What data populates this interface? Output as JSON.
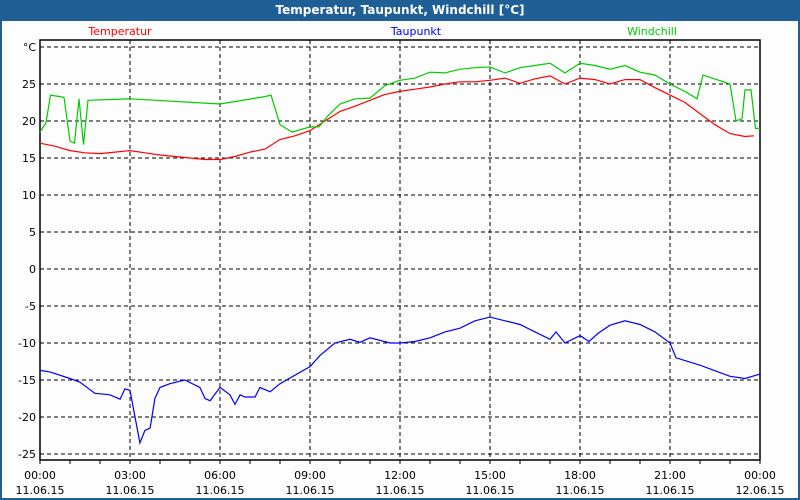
{
  "window": {
    "title": "Temperatur, Taupunkt, Windchill [°C]"
  },
  "chart_data": {
    "type": "line",
    "title": "Temperatur, Taupunkt, Windchill [°C]",
    "ylabel": "°C",
    "ylim": [
      -26,
      32
    ],
    "yticks": [
      30,
      25,
      20,
      15,
      10,
      5,
      0,
      -5,
      -10,
      -15,
      -20,
      -25
    ],
    "ytick_labels": [
      "°C",
      "25",
      "20",
      "15",
      "10",
      "5",
      "0",
      "-5",
      "-10",
      "-15",
      "-20",
      "-25"
    ],
    "xlim_hours": [
      0,
      24
    ],
    "xticks": [
      {
        "h": 0,
        "time": "00:00",
        "date": "11.06.15"
      },
      {
        "h": 3,
        "time": "03:00",
        "date": "11.06.15"
      },
      {
        "h": 6,
        "time": "06:00",
        "date": "11.06.15"
      },
      {
        "h": 9,
        "time": "09:00",
        "date": "11.06.15"
      },
      {
        "h": 12,
        "time": "12:00",
        "date": "11.06.15"
      },
      {
        "h": 15,
        "time": "15:00",
        "date": "11.06.15"
      },
      {
        "h": 18,
        "time": "18:00",
        "date": "11.06.15"
      },
      {
        "h": 21,
        "time": "21:00",
        "date": "11.06.15"
      },
      {
        "h": 24,
        "time": "00:00",
        "date": "12.06.15"
      }
    ],
    "grid": true,
    "series": [
      {
        "name": "Temperatur",
        "color": "#ff0000",
        "legend": "top-left",
        "points": [
          [
            0,
            17.0
          ],
          [
            0.5,
            16.6
          ],
          [
            1,
            16.0
          ],
          [
            1.5,
            15.7
          ],
          [
            2,
            15.6
          ],
          [
            2.5,
            15.8
          ],
          [
            3,
            16.0
          ],
          [
            3.5,
            15.7
          ],
          [
            4,
            15.4
          ],
          [
            4.5,
            15.2
          ],
          [
            5,
            15.0
          ],
          [
            5.5,
            14.8
          ],
          [
            6,
            14.8
          ],
          [
            6.5,
            15.2
          ],
          [
            7,
            15.8
          ],
          [
            7.5,
            16.2
          ],
          [
            8,
            17.5
          ],
          [
            8.5,
            18.0
          ],
          [
            9,
            18.7
          ],
          [
            9.5,
            20.0
          ],
          [
            10,
            21.3
          ],
          [
            10.5,
            22.0
          ],
          [
            11,
            22.8
          ],
          [
            11.5,
            23.6
          ],
          [
            12,
            24.0
          ],
          [
            12.5,
            24.3
          ],
          [
            13,
            24.6
          ],
          [
            13.5,
            25.0
          ],
          [
            14,
            25.3
          ],
          [
            14.5,
            25.3
          ],
          [
            15,
            25.5
          ],
          [
            15.5,
            25.8
          ],
          [
            16,
            25.1
          ],
          [
            16.5,
            25.7
          ],
          [
            17,
            26.1
          ],
          [
            17.5,
            25.0
          ],
          [
            18,
            25.8
          ],
          [
            18.5,
            25.6
          ],
          [
            19,
            25.0
          ],
          [
            19.5,
            25.6
          ],
          [
            20,
            25.6
          ],
          [
            20.5,
            24.5
          ],
          [
            21,
            23.5
          ],
          [
            21.5,
            22.5
          ],
          [
            22,
            21.0
          ],
          [
            22.5,
            19.5
          ],
          [
            23,
            18.3
          ],
          [
            23.5,
            17.9
          ],
          [
            23.8,
            18.0
          ]
        ]
      },
      {
        "name": "Taupunkt",
        "color": "#0000ff",
        "legend": "top-center",
        "points": [
          [
            0,
            -13.7
          ],
          [
            0.33,
            -13.9
          ],
          [
            1,
            -14.8
          ],
          [
            1.33,
            -15.3
          ],
          [
            1.83,
            -16.8
          ],
          [
            2.33,
            -17.0
          ],
          [
            2.67,
            -17.6
          ],
          [
            2.83,
            -16.2
          ],
          [
            3,
            -16.4
          ],
          [
            3.33,
            -23.5
          ],
          [
            3.5,
            -21.8
          ],
          [
            3.67,
            -21.5
          ],
          [
            3.83,
            -17.5
          ],
          [
            4,
            -16.0
          ],
          [
            4.33,
            -15.5
          ],
          [
            4.83,
            -15.0
          ],
          [
            5.33,
            -16.0
          ],
          [
            5.5,
            -17.5
          ],
          [
            5.67,
            -17.8
          ],
          [
            6,
            -16.0
          ],
          [
            6.33,
            -17.0
          ],
          [
            6.5,
            -18.3
          ],
          [
            6.67,
            -17.0
          ],
          [
            6.83,
            -17.3
          ],
          [
            7.17,
            -17.3
          ],
          [
            7.33,
            -16.0
          ],
          [
            7.67,
            -16.6
          ],
          [
            8,
            -15.5
          ],
          [
            9,
            -13.2
          ],
          [
            9.33,
            -11.7
          ],
          [
            9.83,
            -10.0
          ],
          [
            10.33,
            -9.5
          ],
          [
            10.67,
            -9.9
          ],
          [
            11,
            -9.3
          ],
          [
            11.67,
            -10.0
          ],
          [
            12,
            -10.0
          ],
          [
            12.5,
            -9.8
          ],
          [
            13,
            -9.3
          ],
          [
            13.5,
            -8.5
          ],
          [
            14,
            -8.0
          ],
          [
            14.5,
            -7.0
          ],
          [
            15,
            -6.5
          ],
          [
            15.5,
            -7.0
          ],
          [
            16,
            -7.5
          ],
          [
            16.5,
            -8.5
          ],
          [
            17,
            -9.5
          ],
          [
            17.2,
            -8.5
          ],
          [
            17.5,
            -10.0
          ],
          [
            18,
            -9.0
          ],
          [
            18.3,
            -9.8
          ],
          [
            18.6,
            -8.7
          ],
          [
            19,
            -7.6
          ],
          [
            19.5,
            -7.0
          ],
          [
            20,
            -7.5
          ],
          [
            20.5,
            -8.5
          ],
          [
            21,
            -10.0
          ],
          [
            21.2,
            -12.0
          ],
          [
            22,
            -13.0
          ],
          [
            23,
            -14.5
          ],
          [
            23.5,
            -14.8
          ],
          [
            24,
            -14.2
          ]
        ]
      },
      {
        "name": "Windchill",
        "color": "#00cc00",
        "legend": "top-right",
        "points": [
          [
            0,
            18.5
          ],
          [
            0.2,
            19.8
          ],
          [
            0.35,
            23.5
          ],
          [
            0.8,
            23.2
          ],
          [
            1.0,
            17.3
          ],
          [
            1.15,
            17.0
          ],
          [
            1.3,
            23.0
          ],
          [
            1.45,
            16.8
          ],
          [
            1.6,
            22.8
          ],
          [
            3,
            23.0
          ],
          [
            6,
            22.3
          ],
          [
            7.5,
            23.3
          ],
          [
            7.7,
            23.5
          ],
          [
            8,
            19.5
          ],
          [
            8.4,
            18.5
          ],
          [
            9,
            19.2
          ],
          [
            9.3,
            19.2
          ],
          [
            9.6,
            20.7
          ],
          [
            10,
            22.3
          ],
          [
            10.5,
            23.0
          ],
          [
            11,
            23.1
          ],
          [
            11.5,
            24.8
          ],
          [
            12,
            25.5
          ],
          [
            12.5,
            25.8
          ],
          [
            13,
            26.6
          ],
          [
            13.5,
            26.5
          ],
          [
            14,
            27.0
          ],
          [
            14.5,
            27.2
          ],
          [
            15,
            27.3
          ],
          [
            15.5,
            26.5
          ],
          [
            16,
            27.2
          ],
          [
            16.5,
            27.5
          ],
          [
            17,
            27.8
          ],
          [
            17.5,
            26.5
          ],
          [
            18,
            27.8
          ],
          [
            18.5,
            27.5
          ],
          [
            19,
            27.0
          ],
          [
            19.5,
            27.5
          ],
          [
            20,
            26.6
          ],
          [
            20.5,
            26.2
          ],
          [
            21,
            25.0
          ],
          [
            21.5,
            24.0
          ],
          [
            21.9,
            23.0
          ],
          [
            22.1,
            26.2
          ],
          [
            23,
            25.0
          ],
          [
            23.2,
            20.0
          ],
          [
            23.4,
            20.3
          ],
          [
            23.5,
            24.2
          ],
          [
            23.7,
            24.2
          ],
          [
            23.85,
            19.0
          ],
          [
            24,
            19.0
          ]
        ]
      }
    ]
  }
}
